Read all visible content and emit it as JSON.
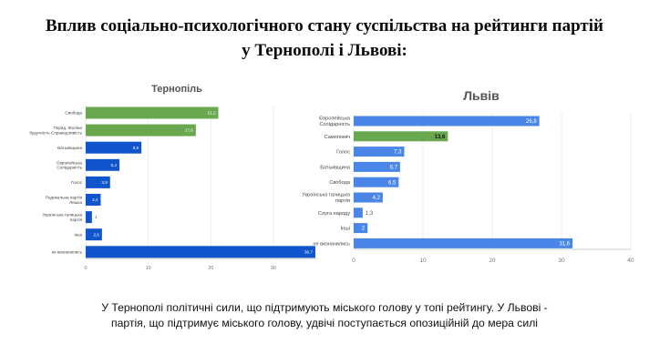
{
  "title": {
    "line1": "Вплив соціально-психологічного стану суспільства на рейтинги партій",
    "line2": "у Тернополі і Львові:"
  },
  "caption": {
    "line1": "У Тернополі політичні сили, що підтримують міського голову у топі рейтингу. У Львові -",
    "line2": "партія, що підтримує міського голову,  удвічі поступається опозиційній до мера силі"
  },
  "colors": {
    "ternopil_green": "#6aa84f",
    "ternopil_blue": "#1155cc",
    "lviv_green": "#6aa84f",
    "lviv_blue": "#4a86e8"
  },
  "chart_data": [
    {
      "type": "bar",
      "orientation": "horizontal",
      "title": "Тернопіль",
      "categories": [
        "Свобода",
        "Поряд. Жоліна будучність Справедливість",
        "Батьківщина",
        "Європейська Солідарність",
        "Голос",
        "Радикальна партія Ляшка",
        "Українська галицька партія",
        "Інші",
        "не визначились"
      ],
      "values": [
        21.2,
        17.6,
        8.9,
        5.4,
        3.9,
        2.4,
        1,
        2.6,
        36.7
      ],
      "data_labels": [
        "21,2",
        "17,6",
        "8,9",
        "5,4",
        "3,9",
        "2,4",
        "1",
        "2,6",
        "36,7"
      ],
      "bar_colors": [
        "green",
        "green",
        "blue",
        "blue",
        "blue",
        "blue",
        "blue",
        "blue",
        "blue"
      ],
      "xlim": [
        0,
        37
      ],
      "xticks": [
        0,
        10,
        20,
        30
      ],
      "grid": true,
      "legend": "none"
    },
    {
      "type": "bar",
      "orientation": "horizontal",
      "title": "Львів",
      "categories": [
        "Європейська Солідарність",
        "Самопоміч",
        "Голос",
        "Батьківщина",
        "Свобода",
        "Українська галицька партія",
        "Слуга народу",
        "Інші",
        "не визначились"
      ],
      "values": [
        26.8,
        13.6,
        7.3,
        6.7,
        6.5,
        4.2,
        1.3,
        2,
        31.6
      ],
      "data_labels": [
        "26,8",
        "13,6",
        "7,3",
        "6,7",
        "6,5",
        "4,2",
        "1,3",
        "2",
        "31,6"
      ],
      "bar_colors": [
        "blue",
        "green",
        "blue",
        "blue",
        "blue",
        "blue",
        "blue",
        "blue",
        "blue"
      ],
      "xlim": [
        0,
        40
      ],
      "xticks": [
        0,
        10,
        20,
        30,
        40
      ],
      "grid": true,
      "legend": "none"
    }
  ]
}
